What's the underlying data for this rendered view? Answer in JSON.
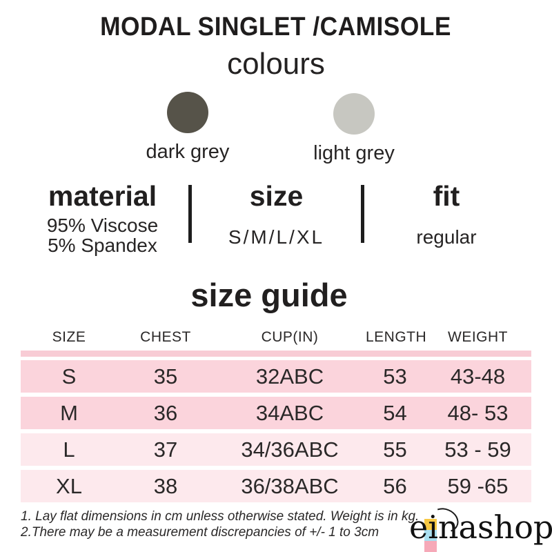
{
  "header": {
    "title": "MODAL SINGLET /CAMISOLE",
    "subtitle": "colours"
  },
  "colours": [
    {
      "name": "dark grey",
      "hex": "#565349"
    },
    {
      "name": "light grey",
      "hex": "#c7c7c1"
    }
  ],
  "info_sections": [
    {
      "heading": "material",
      "lines": [
        "95% Viscose",
        "5% Spandex"
      ]
    },
    {
      "heading": "size",
      "lines": [
        "S/M/L/XL"
      ]
    },
    {
      "heading": "fit",
      "lines": [
        "regular"
      ]
    }
  ],
  "size_guide": {
    "title": "size guide",
    "columns": [
      "SIZE",
      "CHEST",
      "CUP(IN)",
      "LENGTH",
      "WEIGHT"
    ],
    "rows": [
      [
        "S",
        "35",
        "32ABC",
        "53",
        "43-48"
      ],
      [
        "M",
        "36",
        "34ABC",
        "54",
        "48- 53"
      ],
      [
        "L",
        "37",
        "34/36ABC",
        "55",
        "53 - 59"
      ],
      [
        "XL",
        "38",
        "36/38ABC",
        "56",
        "59 -65"
      ]
    ],
    "accent_bar_color": "#f8ccd5",
    "row_colors": [
      "#fbd4dc",
      "#fbd4dc",
      "#fde9ed",
      "#fde9ed"
    ]
  },
  "notes": [
    "1. Lay flat dimensions in cm unless otherwise stated. Weight is in kg.",
    "2.There may be a measurement discrepancies of +/- 1 to 3cm"
  ],
  "brand": {
    "name": "einashop",
    "blocks": [
      "#f7c843",
      "#aadff0",
      "#f6a9b8"
    ]
  }
}
